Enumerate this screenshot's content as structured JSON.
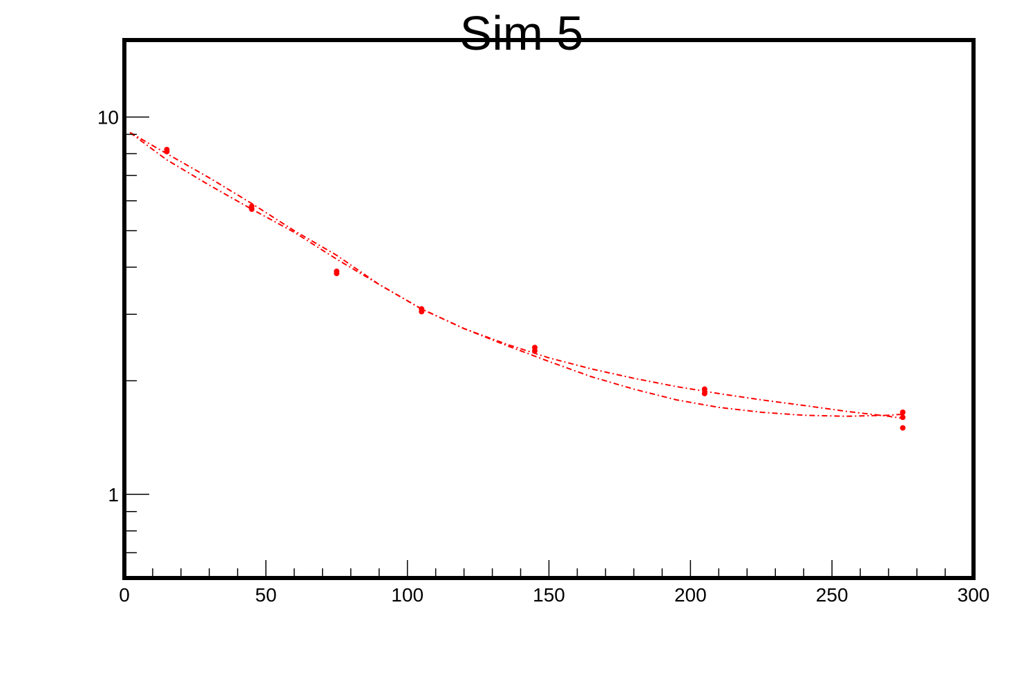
{
  "chart_data": {
    "type": "scatter",
    "title": "Sim 5",
    "xlabel": "",
    "ylabel": "",
    "xlim": [
      0,
      300
    ],
    "ylim": [
      0.6,
      16
    ],
    "yscale": "log",
    "grid": false,
    "legend": "none",
    "x_ticks": [
      "0",
      "50",
      "100",
      "150",
      "200",
      "250",
      "300"
    ],
    "y_ticks": [
      "1",
      "10"
    ],
    "color": "#ff0000",
    "series": [
      {
        "x": [
          15,
          45,
          75,
          105,
          145,
          205,
          275
        ],
        "y": [
          8.2,
          5.8,
          3.9,
          3.1,
          2.45,
          1.9,
          1.6
        ]
      },
      {
        "x": [
          15,
          45,
          75,
          105,
          145,
          205,
          275
        ],
        "y": [
          8.1,
          5.7,
          3.85,
          3.05,
          2.4,
          1.85,
          1.5
        ]
      },
      {
        "x": [
          275
        ],
        "y": [
          1.65
        ]
      }
    ],
    "fit_curves": [
      {
        "x": [
          2,
          15,
          30,
          45,
          60,
          75,
          90,
          105,
          120,
          135,
          150,
          165,
          180,
          195,
          210,
          225,
          240,
          255,
          270,
          275
        ],
        "y": [
          9.1,
          8.0,
          6.9,
          5.9,
          5.0,
          4.3,
          3.6,
          3.1,
          2.75,
          2.5,
          2.3,
          2.15,
          2.03,
          1.93,
          1.85,
          1.78,
          1.72,
          1.66,
          1.61,
          1.59
        ]
      },
      {
        "x": [
          2,
          15,
          30,
          45,
          60,
          75,
          90,
          105,
          120,
          135,
          150,
          165,
          180,
          195,
          210,
          225,
          240,
          255,
          270,
          275
        ],
        "y": [
          9.1,
          7.7,
          6.6,
          5.7,
          4.95,
          4.2,
          3.6,
          3.1,
          2.75,
          2.48,
          2.25,
          2.05,
          1.9,
          1.78,
          1.7,
          1.65,
          1.62,
          1.61,
          1.62,
          1.63
        ]
      }
    ]
  }
}
